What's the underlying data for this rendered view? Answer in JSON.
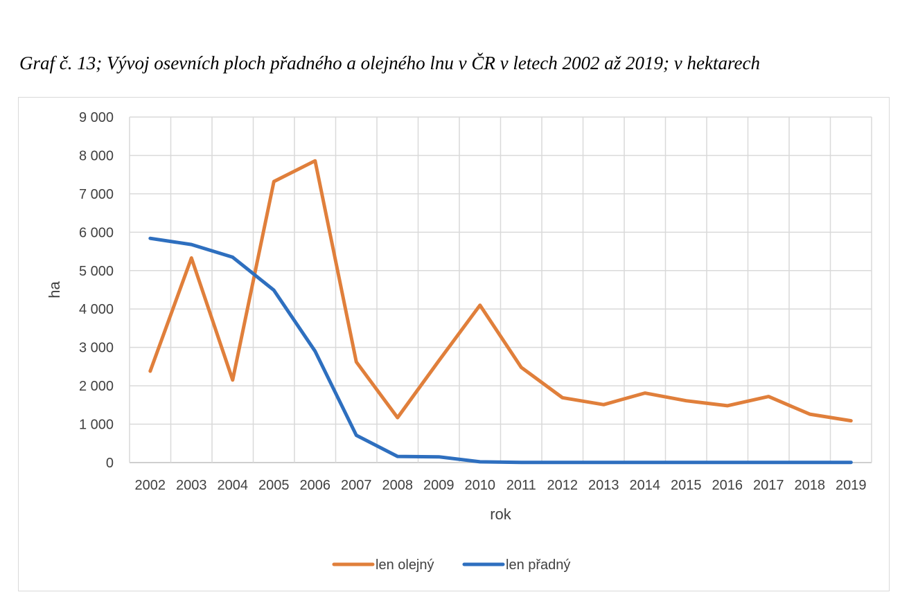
{
  "caption": "Graf č. 13; Vývoj osevních ploch přadného a olejného lnu v ČR v letech 2002 až 2019; v hektarech",
  "chart_data": {
    "type": "line",
    "title": "",
    "xlabel": "rok",
    "ylabel": "ha",
    "categories": [
      "2002",
      "2003",
      "2004",
      "2005",
      "2006",
      "2007",
      "2008",
      "2009",
      "2010",
      "2011",
      "2012",
      "2013",
      "2014",
      "2015",
      "2016",
      "2017",
      "2018",
      "2019"
    ],
    "ylim": [
      0,
      9000
    ],
    "yticks": [
      0,
      1000,
      2000,
      3000,
      4000,
      5000,
      6000,
      7000,
      8000,
      9000
    ],
    "ytick_labels": [
      "0",
      "1 000",
      "2 000",
      "3 000",
      "4 000",
      "5 000",
      "6 000",
      "7 000",
      "8 000",
      "9 000"
    ],
    "grid": true,
    "legend_position": "bottom",
    "series": [
      {
        "name": "len olejný",
        "color": "#E07F3B",
        "values": [
          2380,
          5330,
          2150,
          7320,
          7860,
          2620,
          1170,
          2650,
          4100,
          2480,
          1690,
          1510,
          1810,
          1610,
          1480,
          1720,
          1260,
          1090
        ]
      },
      {
        "name": "len přadný",
        "color": "#2E6FBF",
        "values": [
          5840,
          5680,
          5350,
          4490,
          2900,
          710,
          160,
          150,
          20,
          5,
          5,
          5,
          5,
          5,
          5,
          5,
          5,
          5
        ]
      }
    ]
  }
}
